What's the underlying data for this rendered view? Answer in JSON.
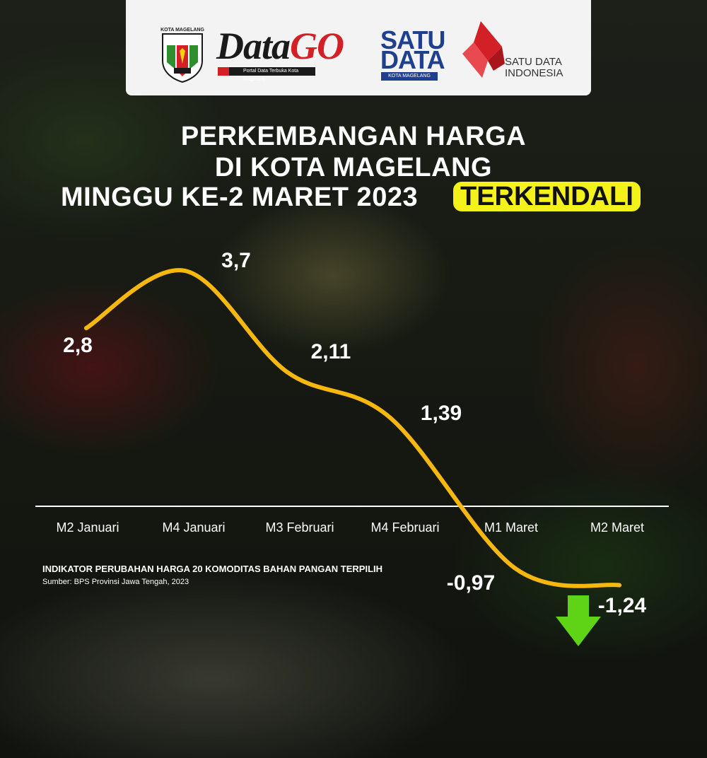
{
  "header": {
    "crest_text": "KOTA MAGELANG",
    "datago_a": "Data",
    "datago_b": "GO",
    "datago_tagline": "Portal Data Terbuka Kota Magelang",
    "satu_top": "SATU",
    "satu_bottom": "DATA",
    "satu_kota": "KOTA MAGELANG",
    "sdi_line1": "SATU DATA",
    "sdi_line2": "INDONESIA"
  },
  "title": {
    "line1": "PERKEMBANGAN HARGA",
    "line2": "DI KOTA MAGELANG",
    "line3": "MINGGU KE-2 MARET 2023",
    "badge": "TERKENDALI"
  },
  "note": "INDIKATOR PERUBAHAN HARGA 20 KOMODITAS BAHAN PANGAN TERPILIH",
  "source": "Sumber: BPS Provinsi Jawa Tengah, 2023",
  "colors": {
    "line": "#f6b70f",
    "badge": "#f4f21a",
    "arrow": "#5fd316",
    "brand_red": "#d31f26",
    "brand_blue": "#1f3f8f"
  },
  "chart_data": {
    "type": "line",
    "categories": [
      "M2 Januari",
      "M4 Januari",
      "M3 Februari",
      "M4 Februari",
      "M1 Maret",
      "M2 Maret"
    ],
    "values": [
      2.8,
      3.7,
      2.11,
      1.39,
      -0.97,
      -1.24
    ],
    "value_labels": [
      "2,8",
      "3,7",
      "2,11",
      "1,39",
      "-0,97",
      "-1,24"
    ],
    "grid": false,
    "legend": "none",
    "trend_icon": "arrow-down-icon"
  }
}
